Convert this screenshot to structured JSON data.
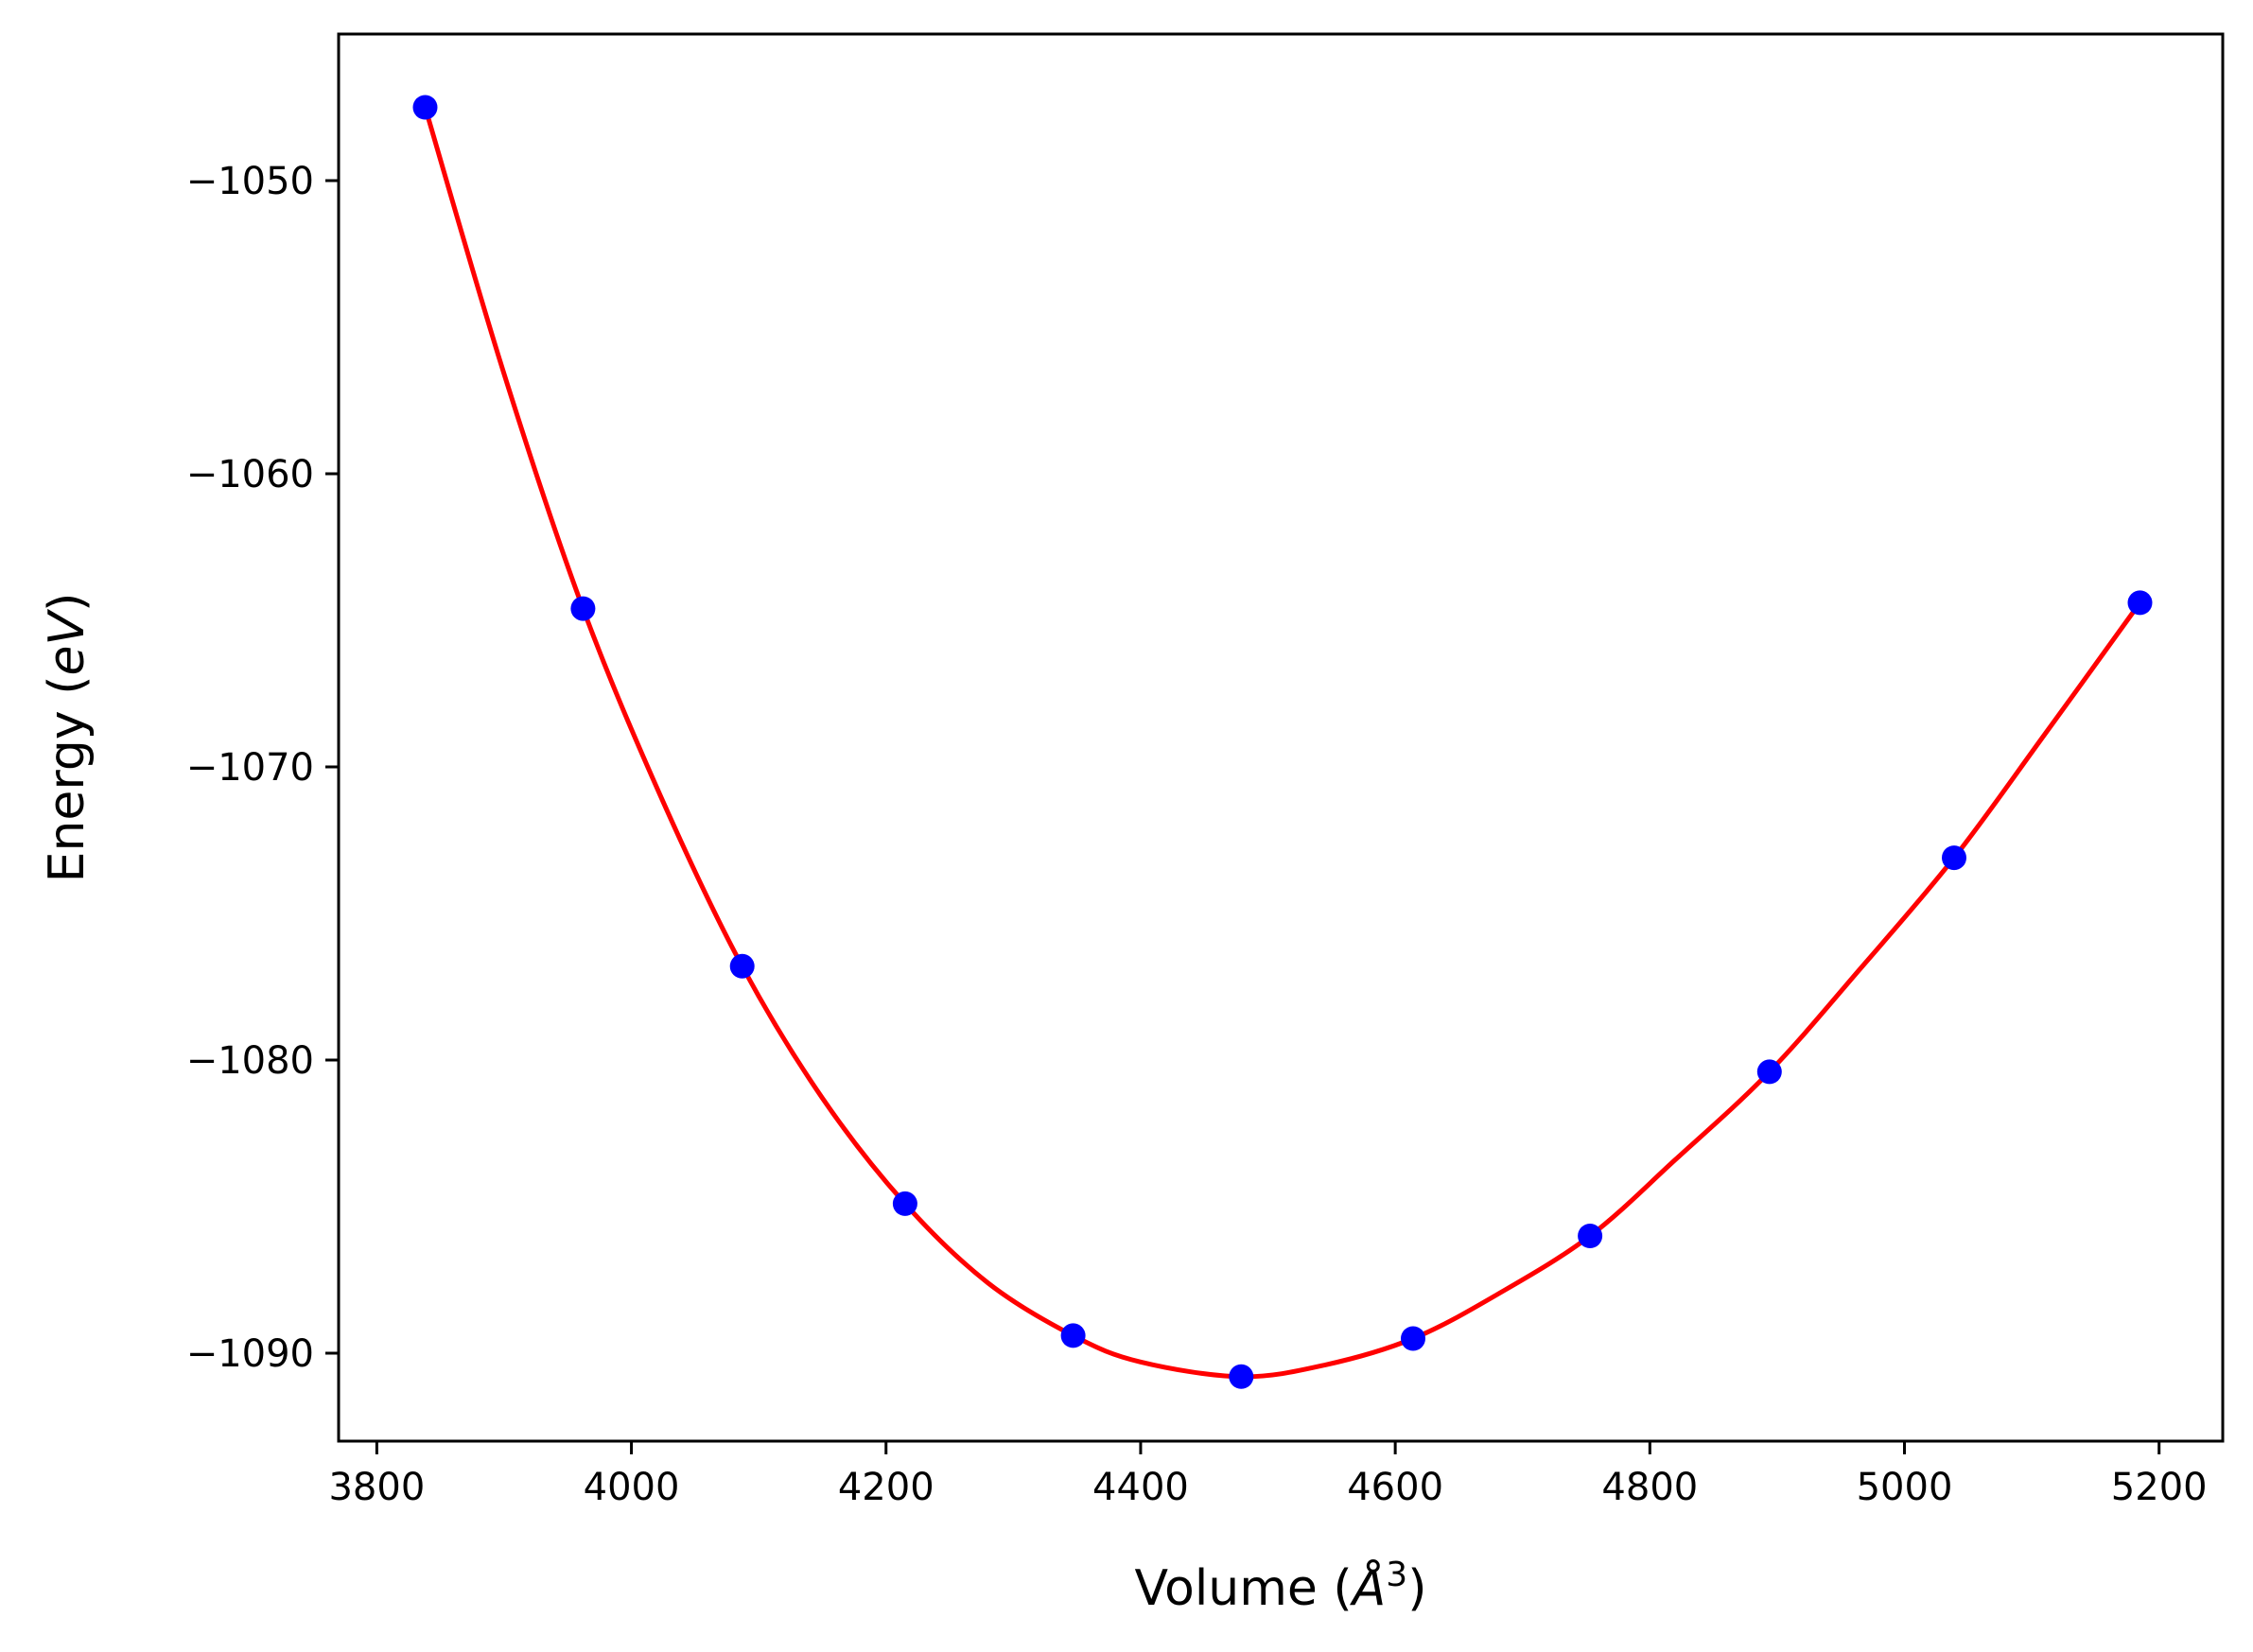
{
  "chart_data": {
    "type": "scatter",
    "xlabel": "Volume (Å³)",
    "ylabel": "Energy (eV)",
    "xlabel_parts": {
      "pre": "Volume (",
      "ital": "Å",
      "sup": "3",
      "post": ")"
    },
    "ylabel_parts": {
      "pre": "Energy (",
      "ital": "eV",
      "post": ")"
    },
    "xlim": [
      3770,
      5250
    ],
    "ylim": [
      -1093,
      -1045
    ],
    "x_ticks": [
      3800,
      4000,
      4200,
      4400,
      4600,
      4800,
      5000,
      5200
    ],
    "x_tick_labels": [
      "3800",
      "4000",
      "4200",
      "4400",
      "4600",
      "4800",
      "5000",
      "5200"
    ],
    "y_ticks": [
      -1090,
      -1080,
      -1070,
      -1060,
      -1050
    ],
    "y_tick_labels": [
      "−1090",
      "−1080",
      "−1070",
      "−1060",
      "−1050"
    ],
    "grid": false,
    "series": [
      {
        "kind": "points",
        "color": "#0000ff",
        "x": [
          3838,
          3962,
          4087,
          4215,
          4347,
          4479,
          4614,
          4753,
          4894,
          5039,
          5185
        ],
        "y": [
          -1047.5,
          -1064.6,
          -1076.8,
          -1084.9,
          -1089.4,
          -1090.8,
          -1089.5,
          -1086.0,
          -1080.4,
          -1073.1,
          -1064.4
        ]
      },
      {
        "kind": "fit",
        "color": "#ff0000",
        "x": [
          3838,
          3900,
          3962,
          4025,
          4087,
          4150,
          4215,
          4280,
          4347,
          4400,
          4479,
          4545,
          4614,
          4680,
          4753,
          4820,
          4894,
          4965,
          5039,
          5110,
          5185
        ],
        "y": [
          -1047.5,
          -1056.6,
          -1064.6,
          -1071.2,
          -1076.8,
          -1081.3,
          -1084.9,
          -1087.6,
          -1089.4,
          -1090.3,
          -1090.8,
          -1090.4,
          -1089.5,
          -1088.0,
          -1086.0,
          -1083.4,
          -1080.4,
          -1076.9,
          -1073.1,
          -1068.9,
          -1064.4
        ]
      }
    ]
  }
}
